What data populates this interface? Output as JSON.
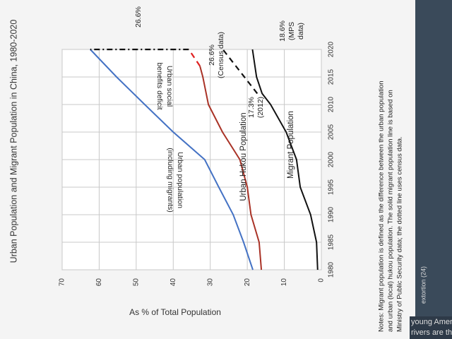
{
  "chart_data": {
    "type": "line",
    "title": "Urban Population and Migrant Population in China, 1980-2020",
    "y_label": "As % of Total Population",
    "xlim": [
      1980,
      2020
    ],
    "xticks": [
      1980,
      1985,
      1990,
      1995,
      2000,
      2005,
      2010,
      2015,
      2020
    ],
    "ylim": [
      0,
      70
    ],
    "yticks": [
      0,
      10,
      20,
      30,
      40,
      50,
      60,
      70
    ],
    "grid": true,
    "series": [
      {
        "color": "#4472c4",
        "dash": "solid",
        "x": [
          1980,
          1985,
          1990,
          1995,
          2000,
          2005,
          2010,
          2015,
          2020
        ],
        "values": [
          18.5,
          21,
          23.8,
          27.7,
          31.5,
          40,
          47.7,
          55.3,
          62.4
        ]
      },
      {
        "color": "#a93226",
        "dash": "solid",
        "x": [
          1980,
          1985,
          1990,
          1995,
          2000,
          2005,
          2010,
          2015,
          2017
        ],
        "values": [
          16.2,
          16.8,
          19,
          20,
          22,
          26.7,
          30.5,
          32,
          32.8
        ]
      },
      {
        "color": "#e02020",
        "dash": "dashed",
        "x": [
          2017,
          2020
        ],
        "values": [
          32.8,
          35.8
        ]
      },
      {
        "color": "#111111",
        "dash": "solid",
        "x": [
          1980,
          1985,
          1990,
          1995,
          2000,
          2005,
          2010,
          2012,
          2015,
          2020
        ],
        "values": [
          1,
          1.3,
          2.9,
          5.7,
          6.7,
          9.5,
          13.7,
          16,
          17.5,
          18.6
        ]
      },
      {
        "color": "#111111",
        "dash": "dashed",
        "x": [
          2012,
          2020
        ],
        "values": [
          17.3,
          26.6
        ]
      },
      {
        "color": "#111111",
        "dash": "dashdot",
        "x": [
          2020,
          2020
        ],
        "values": [
          35.8,
          62.4
        ]
      }
    ],
    "annotations": {
      "urban": [
        "Urban population",
        "(including migrants)"
      ],
      "deficit": [
        "Urban social",
        "benefits deficit"
      ],
      "hukou": "Urban Hukou Population",
      "migrant": "Migrant Population",
      "v2012": [
        "17.3%",
        "(2012)"
      ],
      "census": [
        "26.6%",
        "(Census data)"
      ],
      "mps": [
        "18.6%",
        "(MPS",
        "data)"
      ],
      "gap": "26.6%"
    },
    "notes": [
      "Notes: Migrant population is defined as the difference between the urban population",
      "and urban (local) hukou population. The solid migrant population line is based on",
      "Ministry of Public Security data; the dotted line uses census data."
    ]
  },
  "background_text": [
    "young Americans",
    "rivers are the same –",
    "extortion (24)"
  ]
}
